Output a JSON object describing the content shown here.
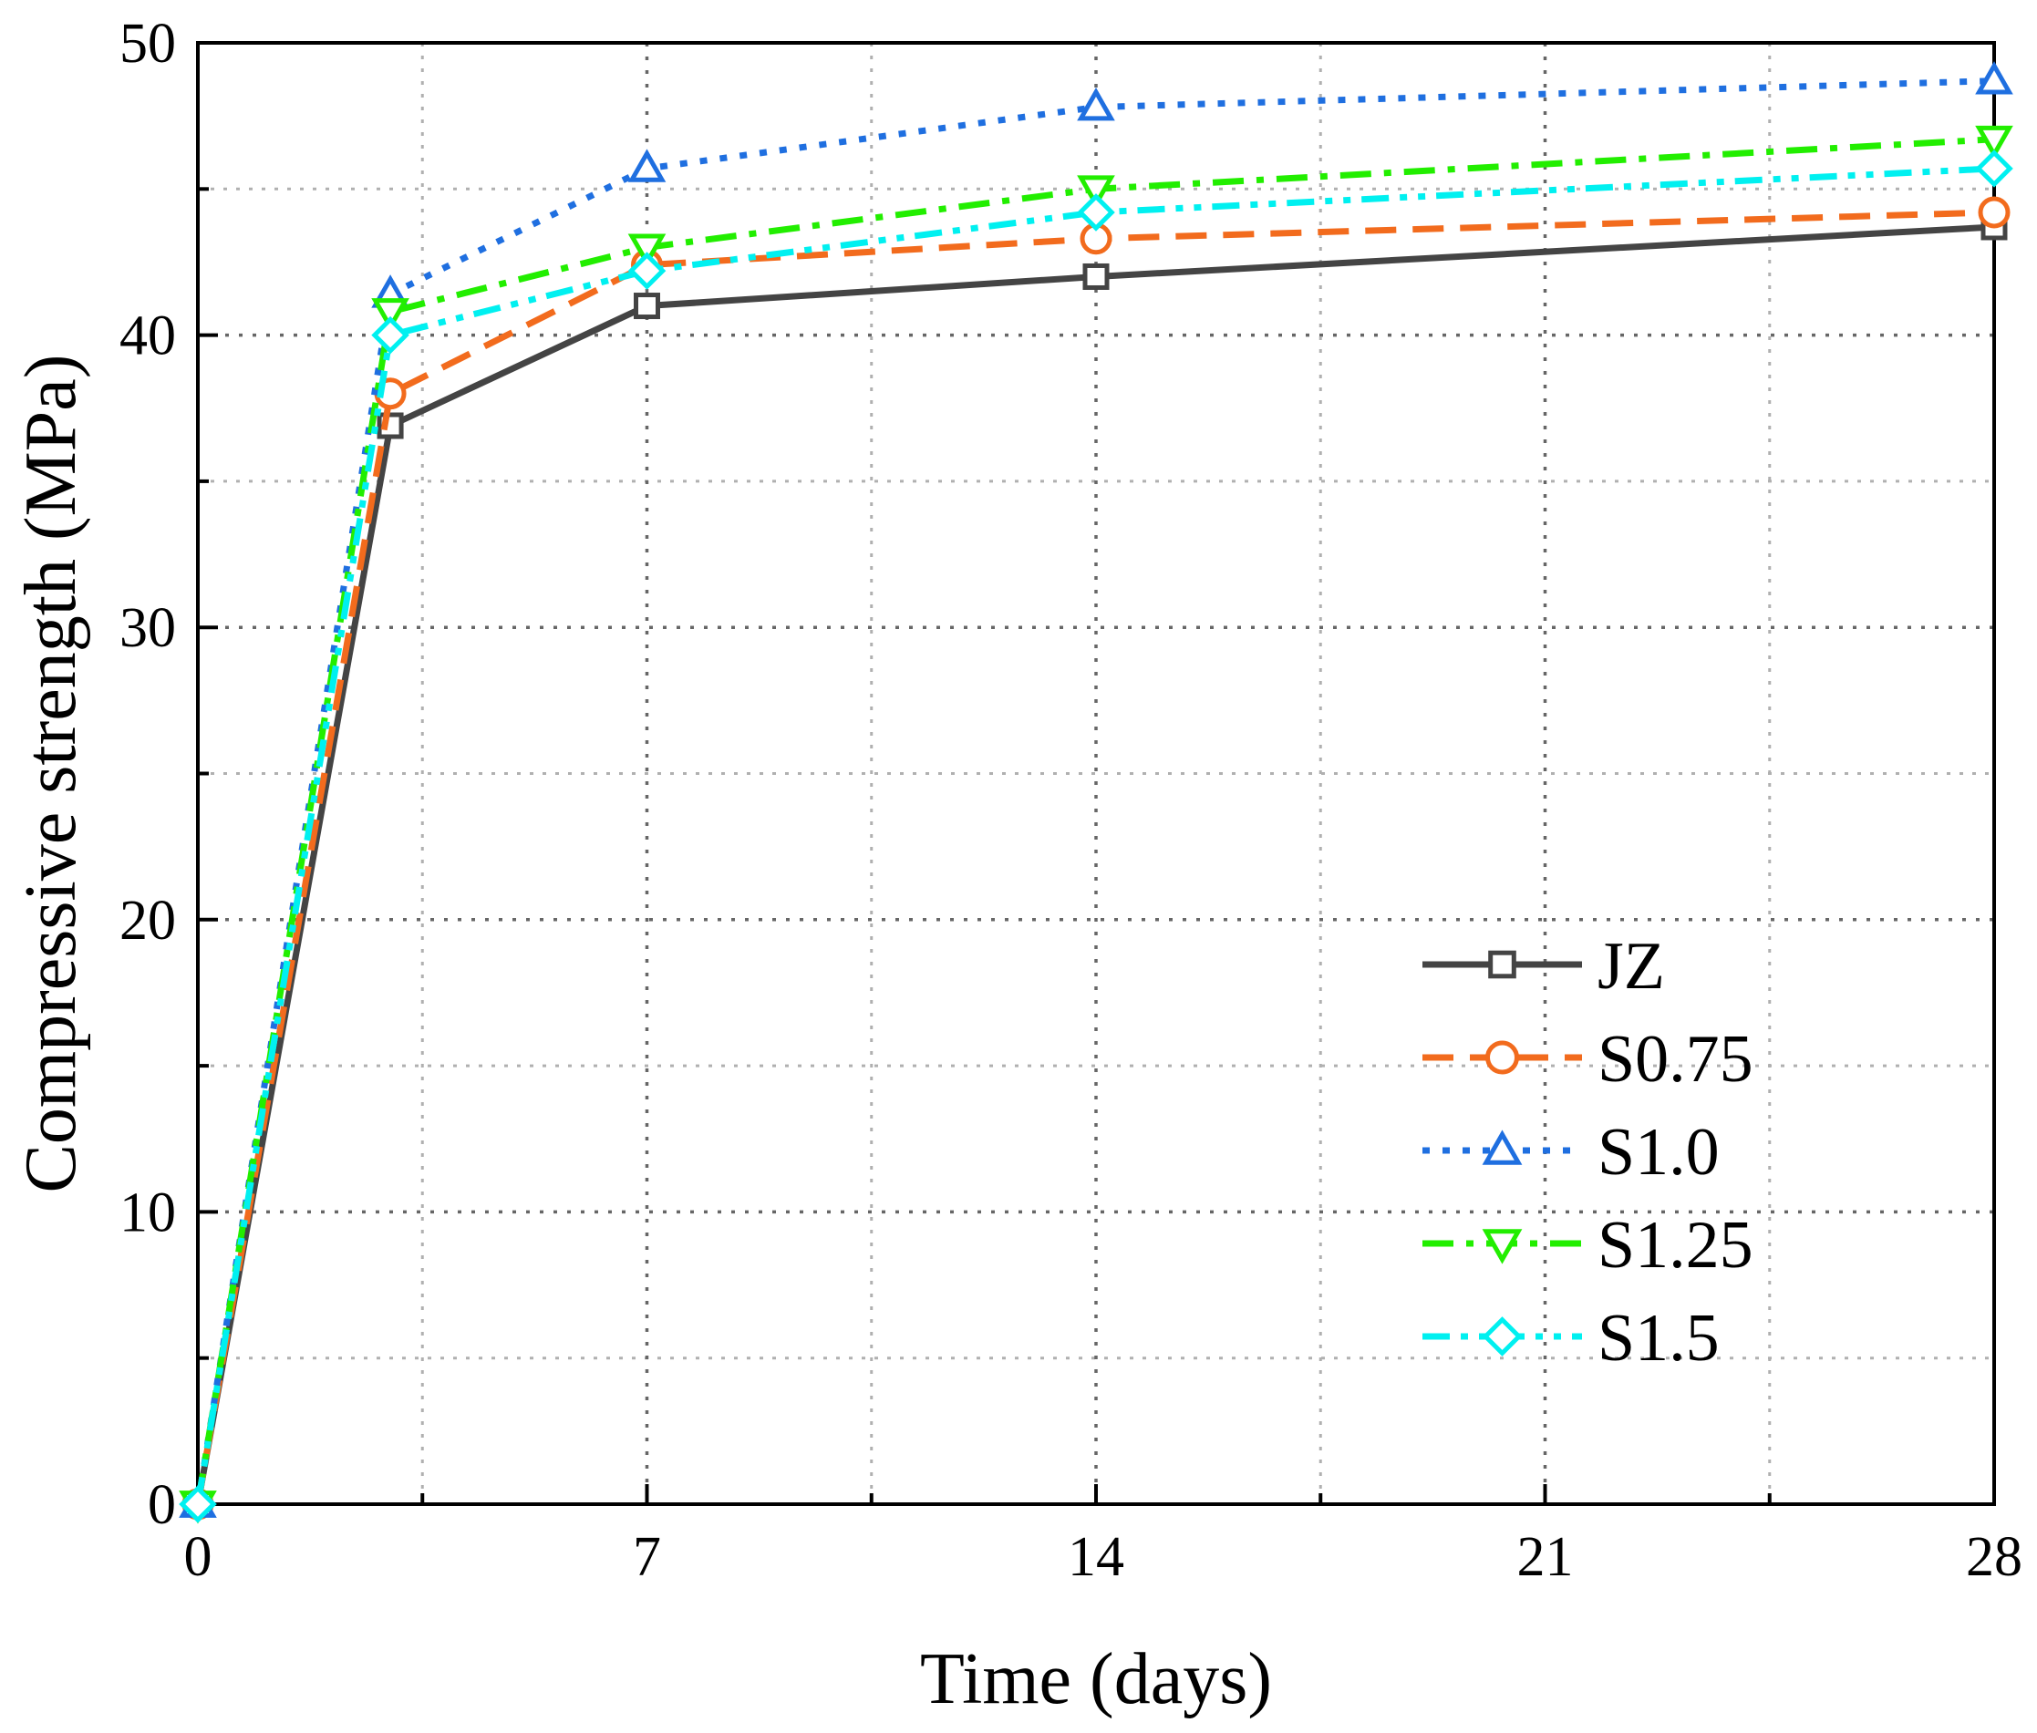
{
  "chart_data": {
    "type": "line",
    "title": "",
    "xlabel": "Time (days)",
    "ylabel": "Compressive strength (MPa)",
    "xlim": [
      0,
      28
    ],
    "ylim": [
      0,
      50
    ],
    "xticks": [
      0,
      7,
      14,
      21,
      28
    ],
    "yticks": [
      0,
      10,
      20,
      30,
      40,
      50
    ],
    "x_minor_ticks": [
      3.5,
      10.5,
      17.5,
      24.5
    ],
    "y_minor_ticks": [
      5,
      15,
      25,
      35,
      45
    ],
    "grid": true,
    "legend_position": "lower-right",
    "series": [
      {
        "name": "JZ",
        "color": "#444444",
        "dash": "solid",
        "marker": "square",
        "x": [
          0,
          3,
          7,
          14,
          28
        ],
        "y": [
          0,
          36.9,
          41.0,
          42.0,
          43.7
        ]
      },
      {
        "name": "S0.75",
        "color": "#F26B1D",
        "dash": "dash",
        "marker": "circle",
        "x": [
          0,
          3,
          7,
          14,
          28
        ],
        "y": [
          0,
          38.0,
          42.4,
          43.3,
          44.2
        ]
      },
      {
        "name": "S1.0",
        "color": "#1F6FE0",
        "dash": "dot",
        "marker": "triangle-up",
        "x": [
          0,
          3,
          7,
          14,
          28
        ],
        "y": [
          0,
          41.4,
          45.7,
          47.8,
          48.7
        ]
      },
      {
        "name": "S1.25",
        "color": "#22EE00",
        "dash": "dashdot",
        "marker": "triangle-down",
        "x": [
          0,
          3,
          7,
          14,
          28
        ],
        "y": [
          0,
          40.8,
          43.0,
          45.0,
          46.7
        ]
      },
      {
        "name": "S1.5",
        "color": "#00F0F0",
        "dash": "dashdotdot",
        "marker": "diamond",
        "x": [
          0,
          3,
          7,
          14,
          28
        ],
        "y": [
          0,
          40.0,
          42.2,
          44.2,
          45.7
        ]
      }
    ]
  }
}
